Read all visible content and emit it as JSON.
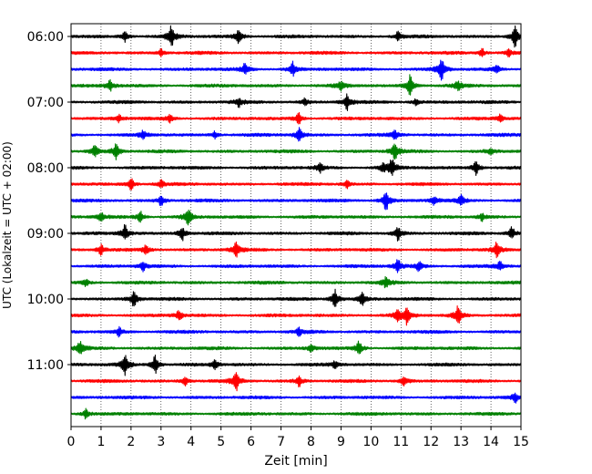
{
  "chart_data": {
    "type": "line",
    "title": "",
    "xlabel": "Zeit  [min]",
    "ylabel": "UTC (Lokalzeit = UTC + 02:00)",
    "xlim": [
      0,
      15
    ],
    "x_ticks": [
      "0",
      "1",
      "2",
      "3",
      "4",
      "5",
      "6",
      "7",
      "8",
      "9",
      "10",
      "11",
      "12",
      "13",
      "14",
      "15"
    ],
    "y_ticks": [
      "06:00",
      "07:00",
      "08:00",
      "09:00",
      "10:00",
      "11:00"
    ],
    "grid": "vertical-dotted",
    "trace_colors": [
      "#000000",
      "#ff0000",
      "#0000ff",
      "#008000"
    ],
    "traces": [
      {
        "start": "06:00",
        "color": "#000000",
        "events": [
          [
            1.8,
            0.6
          ],
          [
            3.35,
            1.3
          ],
          [
            5.6,
            0.9
          ],
          [
            10.9,
            0.5
          ],
          [
            14.8,
            1.2
          ]
        ]
      },
      {
        "start": "06:15",
        "color": "#ff0000",
        "events": [
          [
            3.0,
            0.4
          ],
          [
            13.7,
            0.5
          ],
          [
            14.6,
            0.4
          ]
        ]
      },
      {
        "start": "06:30",
        "color": "#0000ff",
        "events": [
          [
            5.8,
            0.7
          ],
          [
            7.4,
            0.8
          ],
          [
            12.35,
            1.3
          ],
          [
            14.2,
            0.5
          ]
        ]
      },
      {
        "start": "06:45",
        "color": "#008000",
        "events": [
          [
            1.3,
            0.6
          ],
          [
            9.0,
            0.5
          ],
          [
            11.3,
            1.2
          ],
          [
            12.9,
            0.5
          ]
        ]
      },
      {
        "start": "07:00",
        "color": "#000000",
        "events": [
          [
            5.6,
            0.5
          ],
          [
            7.8,
            0.4
          ],
          [
            9.2,
            0.9
          ],
          [
            11.5,
            0.4
          ]
        ]
      },
      {
        "start": "07:15",
        "color": "#ff0000",
        "events": [
          [
            1.6,
            0.4
          ],
          [
            3.3,
            0.4
          ],
          [
            7.6,
            0.7
          ],
          [
            14.3,
            0.4
          ]
        ]
      },
      {
        "start": "07:30",
        "color": "#0000ff",
        "events": [
          [
            2.4,
            0.5
          ],
          [
            4.8,
            0.4
          ],
          [
            7.6,
            0.8
          ],
          [
            10.8,
            0.5
          ]
        ]
      },
      {
        "start": "07:45",
        "color": "#008000",
        "events": [
          [
            0.8,
            0.8
          ],
          [
            1.5,
            1.0
          ],
          [
            10.8,
            1.1
          ],
          [
            14.0,
            0.4
          ]
        ]
      },
      {
        "start": "08:00",
        "color": "#000000",
        "events": [
          [
            8.3,
            0.6
          ],
          [
            10.4,
            0.5
          ],
          [
            10.7,
            1.1
          ],
          [
            13.5,
            0.9
          ]
        ]
      },
      {
        "start": "08:15",
        "color": "#ff0000",
        "events": [
          [
            2.0,
            0.7
          ],
          [
            3.0,
            0.4
          ],
          [
            9.2,
            0.4
          ]
        ]
      },
      {
        "start": "08:30",
        "color": "#0000ff",
        "events": [
          [
            3.0,
            0.6
          ],
          [
            10.5,
            1.2
          ],
          [
            12.1,
            0.5
          ],
          [
            13.0,
            0.6
          ]
        ]
      },
      {
        "start": "08:45",
        "color": "#008000",
        "events": [
          [
            1.0,
            0.5
          ],
          [
            2.3,
            0.7
          ],
          [
            3.9,
            1.0
          ],
          [
            13.7,
            0.4
          ]
        ]
      },
      {
        "start": "09:00",
        "color": "#000000",
        "events": [
          [
            1.8,
            1.0
          ],
          [
            3.7,
            0.9
          ],
          [
            10.9,
            0.8
          ],
          [
            14.7,
            0.8
          ]
        ]
      },
      {
        "start": "09:15",
        "color": "#ff0000",
        "events": [
          [
            1.0,
            0.6
          ],
          [
            2.5,
            0.5
          ],
          [
            5.5,
            1.0
          ],
          [
            14.2,
            0.9
          ]
        ]
      },
      {
        "start": "09:30",
        "color": "#0000ff",
        "events": [
          [
            2.4,
            0.5
          ],
          [
            10.9,
            0.8
          ],
          [
            11.6,
            0.6
          ],
          [
            14.3,
            0.5
          ]
        ]
      },
      {
        "start": "09:45",
        "color": "#008000",
        "events": [
          [
            0.5,
            0.4
          ],
          [
            10.5,
            0.6
          ]
        ]
      },
      {
        "start": "10:00",
        "color": "#000000",
        "events": [
          [
            2.1,
            1.0
          ],
          [
            8.8,
            1.2
          ],
          [
            9.7,
            0.8
          ]
        ]
      },
      {
        "start": "10:15",
        "color": "#ff0000",
        "events": [
          [
            3.6,
            0.6
          ],
          [
            10.9,
            0.6
          ],
          [
            11.2,
            1.0
          ],
          [
            12.9,
            1.2
          ]
        ]
      },
      {
        "start": "10:30",
        "color": "#0000ff",
        "events": [
          [
            1.6,
            0.5
          ],
          [
            7.6,
            0.4
          ]
        ]
      },
      {
        "start": "10:45",
        "color": "#008000",
        "events": [
          [
            0.3,
            0.8
          ],
          [
            8.0,
            0.4
          ],
          [
            9.6,
            0.8
          ]
        ]
      },
      {
        "start": "11:00",
        "color": "#000000",
        "events": [
          [
            1.8,
            1.3
          ],
          [
            2.8,
            1.1
          ],
          [
            4.8,
            0.5
          ],
          [
            8.8,
            0.4
          ]
        ]
      },
      {
        "start": "11:15",
        "color": "#ff0000",
        "events": [
          [
            3.8,
            0.5
          ],
          [
            5.5,
            1.1
          ],
          [
            7.6,
            0.6
          ],
          [
            11.1,
            0.6
          ]
        ]
      },
      {
        "start": "11:30",
        "color": "#0000ff",
        "events": [
          [
            14.8,
            0.6
          ]
        ]
      },
      {
        "start": "11:45",
        "color": "#008000",
        "events": [
          [
            0.5,
            0.6
          ]
        ]
      }
    ]
  }
}
